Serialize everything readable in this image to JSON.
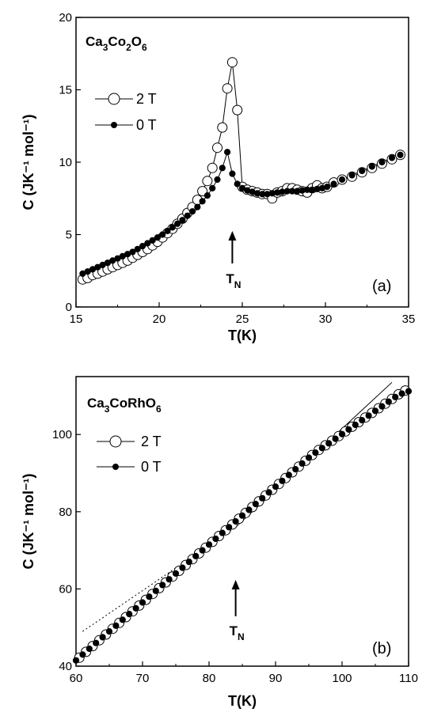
{
  "chart_data": [
    {
      "type": "scatter",
      "panel_label": "(a)",
      "compound": {
        "main": "Ca",
        "sub1": "3",
        "mid": "Co",
        "sub2": "2",
        "end": "O",
        "sub3": "6"
      },
      "xlabel": "T(K)",
      "ylabel": "C (JK⁻¹ mol⁻¹)",
      "xlim": [
        15,
        35
      ],
      "ylim": [
        0,
        20
      ],
      "xticks": [
        15,
        20,
        25,
        30,
        35
      ],
      "yticks": [
        0,
        5,
        10,
        15,
        20
      ],
      "annotation": {
        "text": "T",
        "sub": "N",
        "x": 24.4
      },
      "series": [
        {
          "name": "2 T",
          "marker": "open-circle",
          "x": [
            15.4,
            15.7,
            16.0,
            16.3,
            16.6,
            16.9,
            17.2,
            17.5,
            17.8,
            18.1,
            18.4,
            18.7,
            19.0,
            19.3,
            19.6,
            19.9,
            20.2,
            20.5,
            20.8,
            21.1,
            21.4,
            21.7,
            22.0,
            22.3,
            22.6,
            22.9,
            23.2,
            23.5,
            23.8,
            24.1,
            24.4,
            24.7,
            25.0,
            25.3,
            25.6,
            25.9,
            26.2,
            26.5,
            26.8,
            27.1,
            27.4,
            27.7,
            28.0,
            28.3,
            28.6,
            28.9,
            29.2,
            29.5,
            29.8,
            30.1,
            30.5,
            31.0,
            31.6,
            32.2,
            32.8,
            33.4,
            34.0,
            34.5
          ],
          "y": [
            1.9,
            2.0,
            2.2,
            2.3,
            2.45,
            2.6,
            2.75,
            2.9,
            3.05,
            3.2,
            3.4,
            3.6,
            3.8,
            4.0,
            4.25,
            4.5,
            4.8,
            5.1,
            5.4,
            5.75,
            6.1,
            6.5,
            6.9,
            7.4,
            8.0,
            8.7,
            9.6,
            11.0,
            12.4,
            15.1,
            16.9,
            13.6,
            8.3,
            8.1,
            8.0,
            7.9,
            7.8,
            7.8,
            7.5,
            7.9,
            8.0,
            8.2,
            8.2,
            8.1,
            8.0,
            7.9,
            8.2,
            8.4,
            8.2,
            8.3,
            8.6,
            8.8,
            9.0,
            9.3,
            9.6,
            9.9,
            10.2,
            10.5
          ]
        },
        {
          "name": "0 T",
          "marker": "filled-circle",
          "x": [
            15.4,
            15.7,
            16.0,
            16.3,
            16.6,
            16.9,
            17.2,
            17.5,
            17.8,
            18.1,
            18.4,
            18.7,
            19.0,
            19.3,
            19.6,
            19.9,
            20.2,
            20.5,
            20.8,
            21.1,
            21.4,
            21.7,
            22.0,
            22.3,
            22.6,
            22.9,
            23.2,
            23.5,
            23.8,
            24.1,
            24.4,
            24.7,
            25.0,
            25.3,
            25.6,
            25.9,
            26.2,
            26.5,
            26.8,
            27.1,
            27.4,
            27.7,
            28.0,
            28.3,
            28.6,
            28.9,
            29.2,
            29.5,
            29.8,
            30.1,
            30.5,
            31.0,
            31.6,
            32.2,
            32.8,
            33.4,
            34.0,
            34.5
          ],
          "y": [
            2.3,
            2.45,
            2.6,
            2.75,
            2.9,
            3.05,
            3.2,
            3.35,
            3.5,
            3.65,
            3.8,
            4.0,
            4.2,
            4.4,
            4.6,
            4.8,
            5.0,
            5.25,
            5.5,
            5.75,
            6.0,
            6.3,
            6.6,
            6.9,
            7.3,
            7.7,
            8.2,
            8.8,
            9.6,
            10.7,
            9.2,
            8.5,
            8.2,
            8.05,
            7.95,
            7.85,
            7.8,
            7.8,
            7.85,
            7.9,
            7.95,
            8.0,
            8.0,
            8.0,
            8.05,
            8.1,
            8.1,
            8.15,
            8.2,
            8.3,
            8.5,
            8.8,
            9.1,
            9.4,
            9.7,
            10.0,
            10.3,
            10.5
          ]
        }
      ]
    },
    {
      "type": "scatter",
      "panel_label": "(b)",
      "compound": {
        "main": "Ca",
        "sub1": "3",
        "mid": "CoRhO",
        "sub2": "6"
      },
      "xlabel": "T(K)",
      "ylabel": "C (JK⁻¹ mol⁻¹)",
      "xlim": [
        60,
        110
      ],
      "ylim": [
        40,
        115
      ],
      "xticks": [
        60,
        70,
        80,
        90,
        100,
        110
      ],
      "yticks": [
        40,
        60,
        80,
        100
      ],
      "annotation": {
        "text": "T",
        "sub": "N",
        "x": 84
      },
      "fit_lines": [
        {
          "style": "dotted",
          "x": [
            61,
            84
          ],
          "y": [
            49,
            76
          ]
        },
        {
          "style": "solid",
          "x": [
            84,
            107.5
          ],
          "y": [
            76,
            113.5
          ]
        }
      ],
      "series": [
        {
          "name": "2 T",
          "marker": "open-circle",
          "x": [
            60.5,
            61.5,
            62.5,
            63.5,
            64.5,
            65.5,
            66.5,
            67.5,
            68.5,
            69.5,
            70.5,
            71.5,
            72.5,
            73.5,
            74.5,
            75.5,
            76.5,
            77.5,
            78.5,
            79.5,
            80.5,
            81.5,
            82.5,
            83.5,
            84.5,
            85.5,
            86.5,
            87.5,
            88.5,
            89.5,
            90.5,
            91.5,
            92.5,
            93.5,
            94.5,
            95.5,
            96.5,
            97.5,
            98.5,
            99.5,
            100.5,
            101.5,
            102.5,
            103.5,
            104.5,
            105.5,
            106.5,
            107.5,
            108.5,
            109.5
          ],
          "y": [
            42.2,
            43.7,
            45.2,
            46.7,
            48.2,
            49.7,
            51.2,
            52.7,
            54.2,
            55.7,
            57.2,
            58.7,
            60.2,
            61.7,
            63.2,
            64.7,
            66.2,
            67.7,
            69.2,
            70.7,
            72.2,
            73.7,
            75.2,
            76.7,
            78.2,
            79.7,
            81.2,
            82.7,
            84.2,
            85.7,
            87.2,
            88.7,
            90.2,
            91.7,
            93.2,
            94.7,
            96.0,
            97.2,
            98.4,
            99.6,
            100.8,
            102.0,
            103.2,
            104.4,
            105.6,
            106.8,
            108.0,
            109.2,
            110.4,
            111.4
          ]
        },
        {
          "name": "0 T",
          "marker": "filled-circle",
          "x": [
            60.0,
            61.0,
            62.0,
            63.0,
            64.0,
            65.0,
            66.0,
            67.0,
            68.0,
            69.0,
            70.0,
            71.0,
            72.0,
            73.0,
            74.0,
            75.0,
            76.0,
            77.0,
            78.0,
            79.0,
            80.0,
            81.0,
            82.0,
            83.0,
            84.0,
            85.0,
            86.0,
            87.0,
            88.0,
            89.0,
            90.0,
            91.0,
            92.0,
            93.0,
            94.0,
            95.0,
            96.0,
            97.0,
            98.0,
            99.0,
            100.0,
            101.0,
            102.0,
            103.0,
            104.0,
            105.0,
            106.0,
            107.0,
            108.0,
            109.0,
            110.0
          ],
          "y": [
            41.5,
            43.0,
            44.5,
            46.0,
            47.5,
            49.0,
            50.5,
            52.0,
            53.5,
            55.0,
            56.5,
            58.0,
            59.5,
            61.0,
            62.5,
            64.0,
            65.5,
            67.0,
            68.5,
            70.0,
            71.5,
            73.0,
            74.5,
            76.0,
            77.5,
            79.0,
            80.5,
            82.0,
            83.5,
            85.0,
            86.5,
            88.0,
            89.5,
            91.0,
            92.5,
            94.0,
            95.3,
            96.5,
            97.7,
            98.9,
            100.1,
            101.3,
            102.5,
            103.7,
            104.9,
            106.1,
            107.3,
            108.5,
            109.7,
            110.6,
            111.2
          ]
        }
      ]
    }
  ]
}
